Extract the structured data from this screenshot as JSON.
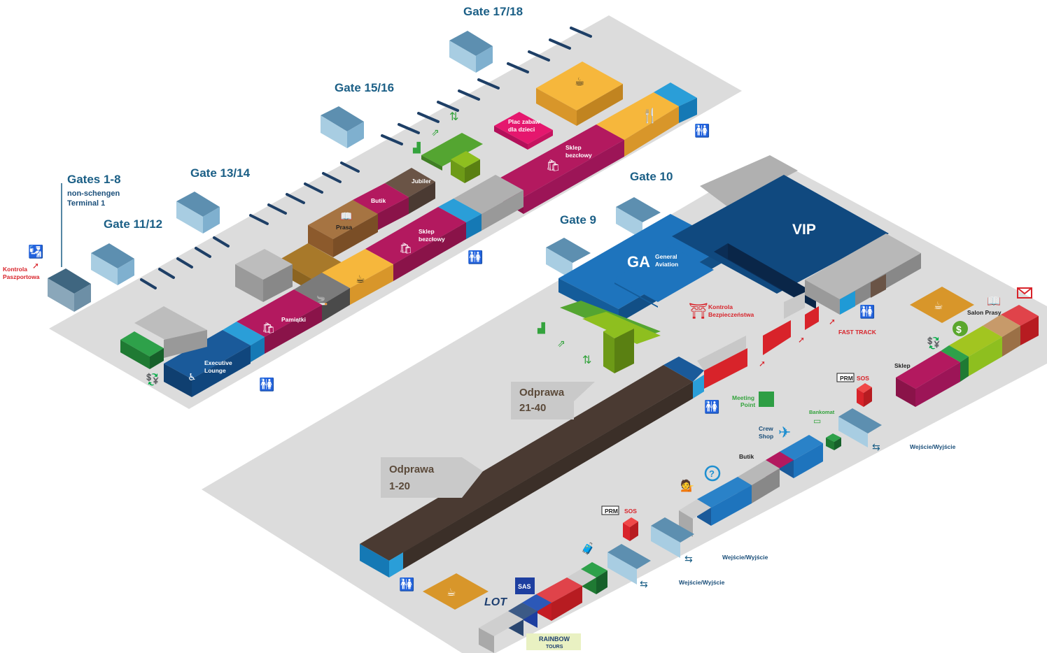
{
  "gates": {
    "g1718": "Gate 17/18",
    "g1516": "Gate 15/16",
    "g1314": "Gate 13/14",
    "g1112": "Gate 11/12",
    "g18": "Gates 1-8",
    "g18_sub1": "non-schengen",
    "g18_sub2": "Terminal 1",
    "g10": "Gate 10",
    "g9": "Gate 9"
  },
  "upper": {
    "kontrola_pasz_1": "Kontrola",
    "kontrola_pasz_2": "Paszportowa",
    "plac_1": "Plac zabaw",
    "plac_2": "dla dzieci",
    "sklep_1": "Sklep",
    "sklep_2": "bezcłowy",
    "jubiler": "Jubiler",
    "butik": "Butik",
    "prasa": "Prasa",
    "sklep_b_1": "Sklep",
    "sklep_b_2": "bezcłowy",
    "pamiatki": "Pamiątki",
    "exec_1": "Executive",
    "exec_2": "Lounge"
  },
  "lower": {
    "ga": "GA",
    "ga_sub1": "General",
    "ga_sub2": "Aviation",
    "vip": "VIP",
    "kontrola_bez_1": "Kontrola",
    "kontrola_bez_2": "Bezpieczeństwa",
    "fast_track": "FAST TRACK",
    "salon_prasy": "Salon Prasy",
    "sklep": "Sklep",
    "meeting_1": "Meeting",
    "meeting_2": "Point",
    "prm": "PRM",
    "sos": "SOS",
    "prm2": "PRM",
    "sos2": "SOS",
    "bankomat": "Bankomat",
    "crew_1": "Crew",
    "crew_2": "Shop",
    "butik": "Butik",
    "wejscie": "Wejście/Wyjście",
    "odprawa_a_1": "Odprawa",
    "odprawa_a_2": "21-40",
    "odprawa_b_1": "Odprawa",
    "odprawa_b_2": "1-20",
    "lot": "LOT",
    "sas": "SAS",
    "rainbow_1": "RAINBOW",
    "rainbow_2": "TOURS"
  },
  "colors": {
    "floor": "#dcdcdc",
    "gate_blue": "#8fbad3",
    "magenta": "#9c1557",
    "navy": "#10467d",
    "blue": "#1772b8",
    "cyan": "#1f9ad6",
    "yellow": "#f1a931",
    "brown": "#8c5a2c",
    "dark_brown": "#4a3a32",
    "green": "#2e8b3e",
    "lime": "#8ebf1f",
    "red": "#d8232a",
    "grey": "#a9a9a9"
  }
}
